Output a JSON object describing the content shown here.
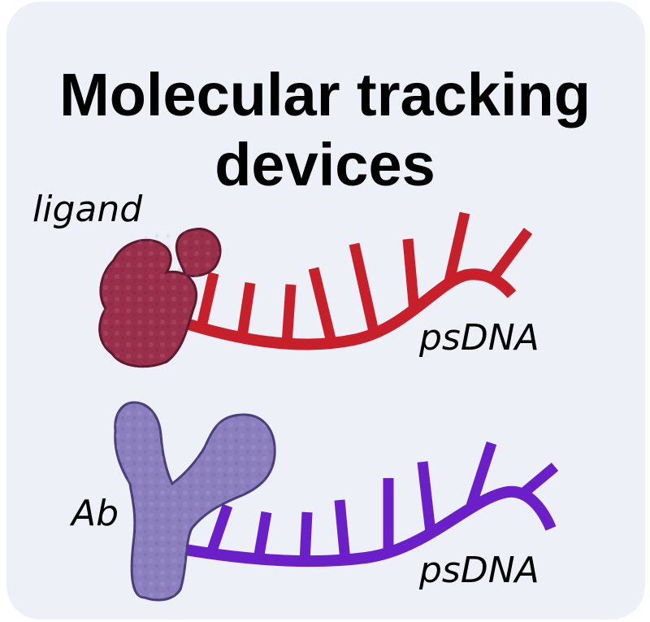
{
  "title": {
    "line1": "Molecular tracking",
    "line2": "devices"
  },
  "constructs": [
    {
      "label": "ligand",
      "tag_label": "psDNA",
      "color": "#c8202a",
      "molecule_color": "#9a2f4b",
      "molecule_icon": "ligand-protein-icon"
    },
    {
      "label": "Ab",
      "tag_label": "psDNA",
      "color": "#6a1fc8",
      "molecule_color": "#8b7fbf",
      "molecule_icon": "antibody-icon"
    }
  ],
  "colors": {
    "background": "#eef0f8",
    "text": "#000000"
  }
}
